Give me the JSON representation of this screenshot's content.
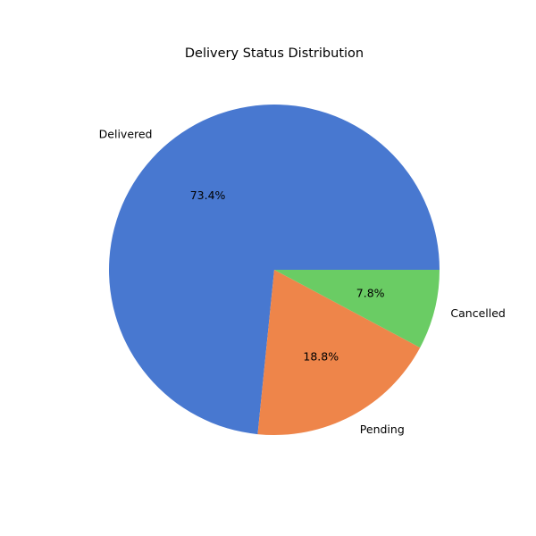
{
  "chart_data": {
    "type": "pie",
    "title": "Delivery Status Distribution",
    "categories": [
      "Delivered",
      "Pending",
      "Cancelled"
    ],
    "values": [
      73.4,
      18.8,
      7.8
    ],
    "value_labels": [
      "73.4%",
      "18.8%",
      "7.8%"
    ],
    "colors": [
      "#4878d0",
      "#ee854a",
      "#6acc64"
    ],
    "start_angle_deg": 0,
    "direction": "counterclockwise",
    "legend": "none"
  }
}
